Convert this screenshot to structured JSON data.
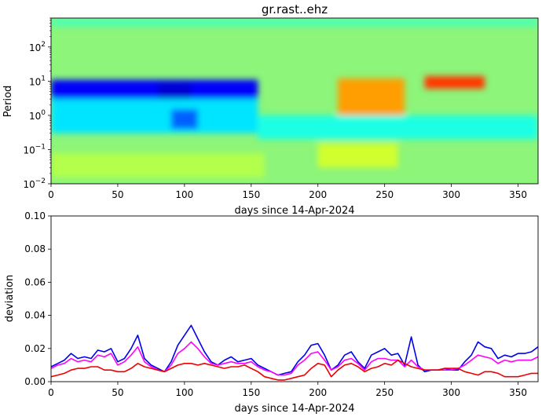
{
  "chart_data": [
    {
      "type": "heatmap",
      "title": "gr.rast..ehz",
      "xlabel": "days since 14-Apr-2024",
      "ylabel": "Period",
      "xlim": [
        0,
        365
      ],
      "ylim": [
        0.01,
        700
      ],
      "yscale": "log",
      "xticks": [
        "0",
        "50",
        "100",
        "150",
        "200",
        "250",
        "300",
        "350"
      ],
      "yticks": [
        {
          "base": "10",
          "exp": "−2"
        },
        {
          "base": "10",
          "exp": "−1"
        },
        {
          "base": "10",
          "exp": "0"
        },
        {
          "base": "10",
          "exp": "1"
        },
        {
          "base": "10",
          "exp": "2"
        }
      ],
      "colormap": "jet",
      "baseline_color": "#8cf57a",
      "regions": [
        {
          "x0": 0,
          "x1": 155,
          "y0": 3,
          "y1": 11,
          "level": 0.12
        },
        {
          "x0": 80,
          "x1": 105,
          "y0": 3,
          "y1": 9,
          "level": 0.08
        },
        {
          "x0": 0,
          "x1": 155,
          "y0": 0.3,
          "y1": 3,
          "level": 0.35
        },
        {
          "x0": 90,
          "x1": 110,
          "y0": 0.4,
          "y1": 1.5,
          "level": 0.22
        },
        {
          "x0": 155,
          "x1": 365,
          "y0": 0.2,
          "y1": 1,
          "level": 0.4
        },
        {
          "x0": 215,
          "x1": 265,
          "y0": 1,
          "y1": 12,
          "level": 0.72
        },
        {
          "x0": 280,
          "x1": 325,
          "y0": 6,
          "y1": 14,
          "level": 0.82
        },
        {
          "x0": 0,
          "x1": 160,
          "y0": 0.015,
          "y1": 0.08,
          "level": 0.55
        },
        {
          "x0": 200,
          "x1": 260,
          "y0": 0.03,
          "y1": 0.15,
          "level": 0.58
        },
        {
          "x0": 0,
          "x1": 365,
          "y0": 400,
          "y1": 700,
          "level": 0.45
        }
      ]
    },
    {
      "type": "line",
      "xlabel": "days since 14-Apr-2024",
      "ylabel": "deviation",
      "xlim": [
        0,
        365
      ],
      "ylim": [
        0,
        0.1
      ],
      "xticks": [
        "0",
        "50",
        "100",
        "150",
        "200",
        "250",
        "300",
        "350"
      ],
      "yticks": [
        "0.00",
        "0.02",
        "0.04",
        "0.06",
        "0.08",
        "0.10"
      ],
      "x": [
        0,
        5,
        10,
        15,
        20,
        25,
        30,
        35,
        40,
        45,
        50,
        55,
        60,
        65,
        70,
        75,
        80,
        85,
        90,
        95,
        100,
        105,
        110,
        115,
        120,
        125,
        130,
        135,
        140,
        145,
        150,
        155,
        160,
        165,
        170,
        175,
        180,
        185,
        190,
        195,
        200,
        205,
        210,
        215,
        220,
        225,
        230,
        235,
        240,
        245,
        250,
        255,
        260,
        265,
        270,
        275,
        280,
        285,
        290,
        295,
        300,
        305,
        310,
        315,
        320,
        325,
        330,
        335,
        340,
        345,
        350,
        355,
        360,
        365
      ],
      "series": [
        {
          "color": "#0000ee",
          "values": [
            0.009,
            0.011,
            0.013,
            0.017,
            0.014,
            0.015,
            0.014,
            0.019,
            0.018,
            0.02,
            0.012,
            0.014,
            0.02,
            0.028,
            0.014,
            0.01,
            0.008,
            0.006,
            0.012,
            0.022,
            0.028,
            0.034,
            0.026,
            0.018,
            0.012,
            0.01,
            0.013,
            0.015,
            0.012,
            0.013,
            0.014,
            0.01,
            0.008,
            0.006,
            0.004,
            0.005,
            0.006,
            0.012,
            0.016,
            0.022,
            0.023,
            0.016,
            0.007,
            0.01,
            0.016,
            0.018,
            0.012,
            0.008,
            0.016,
            0.018,
            0.02,
            0.016,
            0.017,
            0.01,
            0.027,
            0.01,
            0.006,
            0.007,
            0.007,
            0.008,
            0.007,
            0.007,
            0.012,
            0.016,
            0.024,
            0.021,
            0.02,
            0.014,
            0.016,
            0.015,
            0.017,
            0.017,
            0.018,
            0.021
          ]
        },
        {
          "color": "#ff00ff",
          "values": [
            0.008,
            0.01,
            0.011,
            0.014,
            0.012,
            0.013,
            0.012,
            0.016,
            0.015,
            0.017,
            0.01,
            0.012,
            0.016,
            0.021,
            0.012,
            0.009,
            0.007,
            0.006,
            0.01,
            0.017,
            0.02,
            0.024,
            0.02,
            0.015,
            0.011,
            0.01,
            0.011,
            0.012,
            0.011,
            0.011,
            0.012,
            0.009,
            0.007,
            0.006,
            0.004,
            0.004,
            0.005,
            0.01,
            0.013,
            0.017,
            0.018,
            0.013,
            0.007,
            0.009,
            0.013,
            0.014,
            0.011,
            0.007,
            0.012,
            0.014,
            0.014,
            0.013,
            0.013,
            0.009,
            0.013,
            0.009,
            0.007,
            0.007,
            0.007,
            0.007,
            0.007,
            0.008,
            0.01,
            0.013,
            0.016,
            0.015,
            0.014,
            0.011,
            0.013,
            0.012,
            0.013,
            0.013,
            0.013,
            0.015
          ]
        },
        {
          "color": "#ee0000",
          "values": [
            0.003,
            0.004,
            0.005,
            0.007,
            0.008,
            0.008,
            0.009,
            0.009,
            0.007,
            0.007,
            0.006,
            0.006,
            0.008,
            0.011,
            0.009,
            0.008,
            0.007,
            0.006,
            0.008,
            0.01,
            0.011,
            0.011,
            0.01,
            0.011,
            0.01,
            0.009,
            0.008,
            0.009,
            0.009,
            0.01,
            0.008,
            0.006,
            0.003,
            0.002,
            0.001,
            0.001,
            0.002,
            0.003,
            0.004,
            0.008,
            0.011,
            0.01,
            0.003,
            0.007,
            0.01,
            0.011,
            0.009,
            0.006,
            0.008,
            0.009,
            0.011,
            0.01,
            0.013,
            0.011,
            0.009,
            0.008,
            0.007,
            0.007,
            0.007,
            0.008,
            0.008,
            0.008,
            0.006,
            0.005,
            0.004,
            0.006,
            0.006,
            0.005,
            0.003,
            0.003,
            0.003,
            0.004,
            0.005,
            0.005
          ]
        }
      ]
    }
  ]
}
